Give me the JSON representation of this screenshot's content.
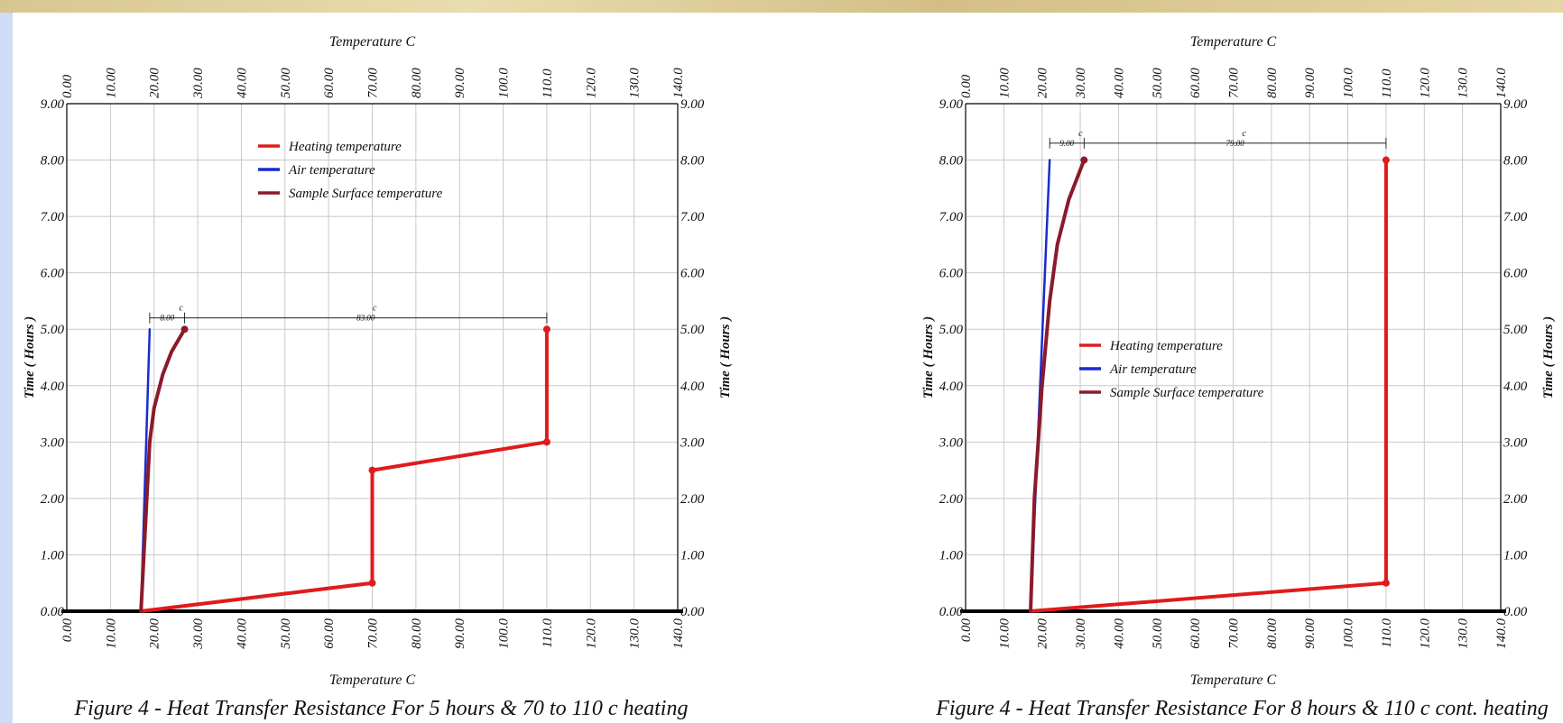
{
  "colors": {
    "heating": "#e01b1b",
    "air": "#1a2bd0",
    "surface": "#8b1a2a",
    "grid": "#c8c8c8",
    "axis": "#000000"
  },
  "chart_data": [
    {
      "type": "line",
      "caption": "Figure 4 - Heat Transfer Resistance For 5 hours & 70 to 110 c heating",
      "xlabel_top": "Temperature C",
      "xlabel_bottom": "Temperature C",
      "ylabel": "Time ( Hours )",
      "xlim": [
        0,
        140
      ],
      "ylim": [
        0,
        9
      ],
      "x_ticks": [
        "0.00",
        "10.00",
        "20.00",
        "30.00",
        "40.00",
        "50.00",
        "60.00",
        "70.00",
        "80.00",
        "90.00",
        "100.0",
        "110.0",
        "120.0",
        "130.0",
        "140.0"
      ],
      "y_ticks": [
        "0.00",
        "1.00",
        "2.00",
        "3.00",
        "4.00",
        "5.00",
        "6.00",
        "7.00",
        "8.00",
        "9.00"
      ],
      "legend": {
        "position": "top-center",
        "entries": [
          "Heating temperature",
          "Air temperature",
          "Sample Surface temperature"
        ]
      },
      "series": [
        {
          "name": "Heating temperature",
          "color_key": "heating",
          "points": [
            [
              17,
              0
            ],
            [
              70,
              0.5
            ],
            [
              70,
              2.5
            ],
            [
              110,
              3
            ],
            [
              110,
              5
            ]
          ],
          "markers": [
            [
              70,
              0.5
            ],
            [
              70,
              2.5
            ],
            [
              110,
              3
            ],
            [
              110,
              5
            ]
          ]
        },
        {
          "name": "Air temperature",
          "color_key": "air",
          "points": [
            [
              17,
              0
            ],
            [
              19,
              5
            ]
          ],
          "markers": []
        },
        {
          "name": "Sample Surface temperature",
          "color_key": "surface",
          "points": [
            [
              17,
              0
            ],
            [
              18,
              1.5
            ],
            [
              19,
              3
            ],
            [
              20,
              3.6
            ],
            [
              22,
              4.2
            ],
            [
              24,
              4.6
            ],
            [
              27,
              5
            ]
          ],
          "markers": [
            [
              27,
              5
            ]
          ]
        }
      ],
      "dimensions": {
        "y": 5.2,
        "ticks": [
          19,
          27,
          110
        ],
        "labels": [
          "8.00",
          "83.00"
        ],
        "unit": "c"
      }
    },
    {
      "type": "line",
      "caption": "Figure 4 - Heat Transfer Resistance For 8 hours & 110 c cont. heating",
      "xlabel_top": "Temperature C",
      "xlabel_bottom": "Temperature C",
      "ylabel": "Time ( Hours )",
      "xlim": [
        0,
        140
      ],
      "ylim": [
        0,
        9
      ],
      "x_ticks": [
        "0.00",
        "10.00",
        "20.00",
        "30.00",
        "40.00",
        "50.00",
        "60.00",
        "70.00",
        "80.00",
        "90.00",
        "100.0",
        "110.0",
        "120.0",
        "130.0",
        "140.0"
      ],
      "y_ticks": [
        "0.00",
        "1.00",
        "2.00",
        "3.00",
        "4.00",
        "5.00",
        "6.00",
        "7.00",
        "8.00",
        "9.00"
      ],
      "legend": {
        "position": "center-left",
        "entries": [
          "Heating temperature",
          "Air temperature",
          "Sample Surface temperature"
        ]
      },
      "series": [
        {
          "name": "Heating temperature",
          "color_key": "heating",
          "points": [
            [
              17,
              0
            ],
            [
              110,
              0.5
            ],
            [
              110,
              8
            ]
          ],
          "markers": [
            [
              110,
              0.5
            ],
            [
              110,
              8
            ]
          ]
        },
        {
          "name": "Air temperature",
          "color_key": "air",
          "points": [
            [
              17,
              0
            ],
            [
              22,
              8
            ]
          ],
          "markers": []
        },
        {
          "name": "Sample Surface temperature",
          "color_key": "surface",
          "points": [
            [
              17,
              0
            ],
            [
              18,
              2
            ],
            [
              20,
              4
            ],
            [
              22,
              5.5
            ],
            [
              24,
              6.5
            ],
            [
              27,
              7.3
            ],
            [
              31,
              8
            ]
          ],
          "markers": [
            [
              31,
              8
            ]
          ]
        }
      ],
      "dimensions": {
        "y": 8.3,
        "ticks": [
          22,
          31,
          110
        ],
        "labels": [
          "9.00",
          "79.00"
        ],
        "unit": "c"
      }
    }
  ]
}
